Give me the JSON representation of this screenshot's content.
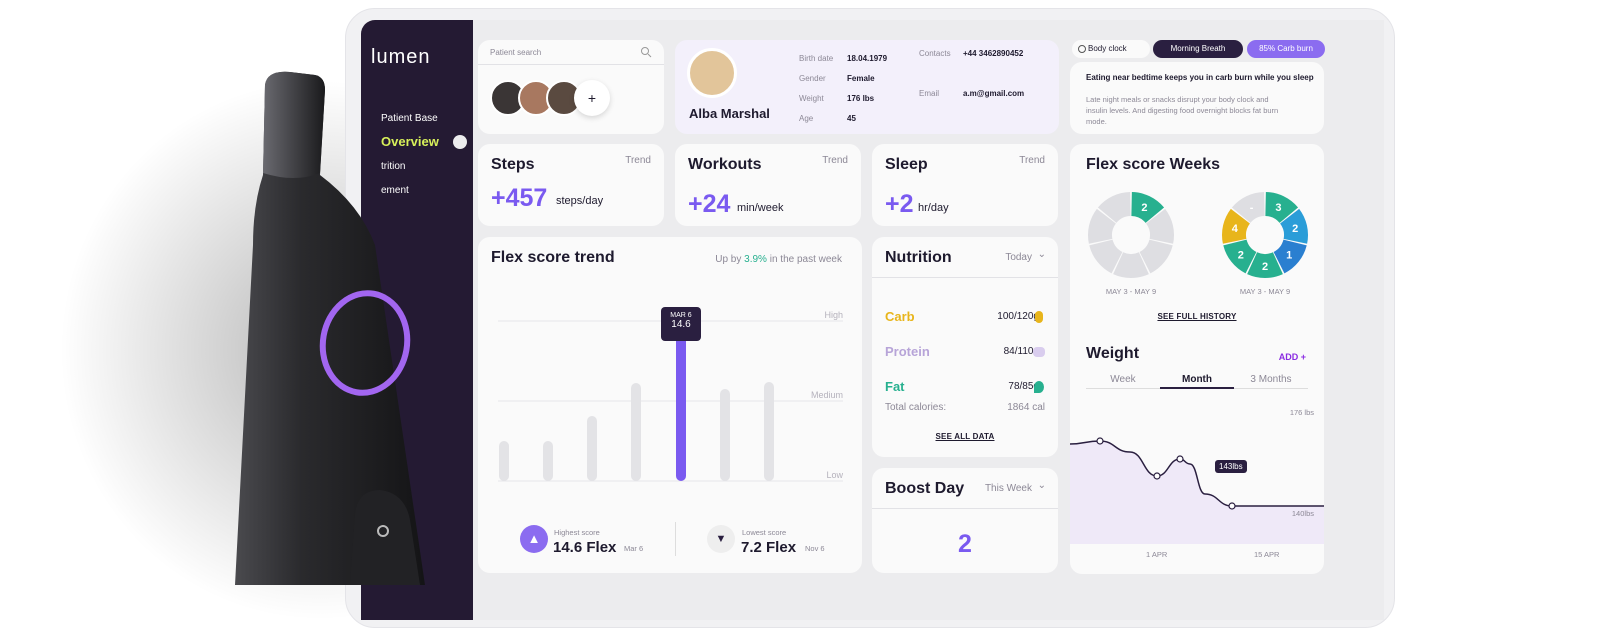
{
  "sidebar": {
    "logo": "lumen",
    "items": [
      "Patient Base",
      "Overview",
      "trition",
      "ement"
    ]
  },
  "search": {
    "placeholder": "Patient search",
    "add": "+"
  },
  "patient": {
    "name": "Alba Marshal",
    "birth_label": "Birth date",
    "birth": "18.04.1979",
    "gender_label": "Gender",
    "gender": "Female",
    "weight_label": "Weight",
    "weight": "176 lbs",
    "age_label": "Age",
    "age": "45",
    "contacts_label": "Contacts",
    "phone": "+44 3462890452",
    "email_label": "Email",
    "email": "a.m@gmail.com"
  },
  "tips": {
    "tabs": [
      "Body clock",
      "Morning Breath",
      "85% Carb burn"
    ],
    "title": "Eating near bedtime keeps you in carb burn while you sleep",
    "body": "Late night meals or snacks disrupt your body clock and insulin levels. And digesting food overnight blocks fat burn mode."
  },
  "stats": [
    {
      "title": "Steps",
      "trend": "Trend",
      "value": "+457",
      "unit": "steps/day"
    },
    {
      "title": "Workouts",
      "trend": "Trend",
      "value": "+24",
      "unit": "min/week"
    },
    {
      "title": "Sleep",
      "trend": "Trend",
      "value": "+2",
      "unit": "hr/day"
    }
  ],
  "trend": {
    "title": "Flex score trend",
    "sub_pre": "Up by ",
    "sub_pct": "3.9%",
    "sub_post": " in the past week",
    "levels": [
      "High",
      "Medium",
      "Low"
    ],
    "tooltip_date": "MAR 6",
    "tooltip_val": "14.6",
    "high_label": "Highest score",
    "high_val": "14.6 Flex",
    "high_date": "Mar 6",
    "low_label": "Lowest score",
    "low_val": "7.2 Flex",
    "low_date": "Nov 6"
  },
  "chart_data": {
    "type": "bar",
    "categories": [
      "",
      "",
      "",
      "",
      "",
      "",
      ""
    ],
    "values": [
      4,
      4,
      6.5,
      9.8,
      14.6,
      9.2,
      9.9
    ],
    "highlight_index": 4,
    "ylim": [
      0,
      16
    ],
    "grid": true
  },
  "nutrition": {
    "title": "Nutrition",
    "period": "Today",
    "items": [
      {
        "name": "Carb",
        "value": "100/120g",
        "color": "#e8b51b"
      },
      {
        "name": "Protein",
        "value": "84/110g",
        "color": "#b7a4d8"
      },
      {
        "name": "Fat",
        "value": "78/85g",
        "color": "#27b08f"
      }
    ],
    "total_label": "Total calories:",
    "total": "1864 cal",
    "link": "SEE ALL DATA"
  },
  "boost": {
    "title": "Boost Day",
    "period": "This Week",
    "value": "2"
  },
  "weeks": {
    "title": "Flex score Weeks",
    "range1": "MAY 3 - MAY 9",
    "range2": "MAY 3 - MAY 9",
    "link": "SEE FULL HISTORY",
    "donut1": [
      "2"
    ],
    "donut2": [
      "3",
      "2",
      "1",
      "2",
      "2",
      "4",
      "-"
    ]
  },
  "weight": {
    "title": "Weight",
    "add": "ADD +",
    "tabs": [
      "Week",
      "Month",
      "3 Months"
    ],
    "top": "176 lbs",
    "bottom": "140lbs",
    "marker": "143lbs",
    "x1": "1 APR",
    "x2": "15 APR"
  }
}
